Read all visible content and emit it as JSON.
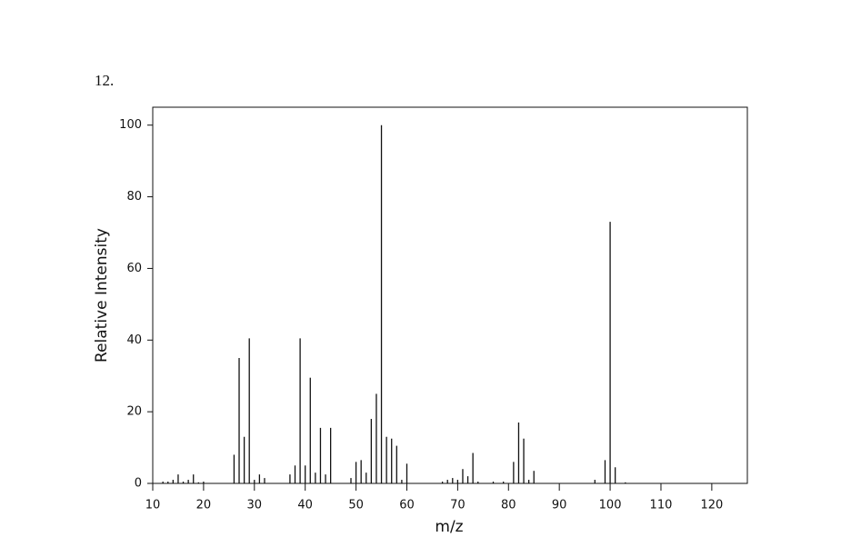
{
  "label": "12.",
  "chart_data": {
    "type": "stem",
    "x_label": "m/z",
    "y_label": "Relative Intensity",
    "color": "#111111",
    "x": [
      12,
      13,
      14,
      15,
      16,
      17,
      18,
      19,
      20,
      26,
      27,
      28,
      29,
      30,
      31,
      32,
      37,
      38,
      39,
      40,
      41,
      42,
      43,
      44,
      45,
      49,
      50,
      51,
      52,
      53,
      54,
      55,
      56,
      57,
      58,
      59,
      60,
      67,
      68,
      69,
      70,
      71,
      72,
      73,
      74,
      77,
      79,
      81,
      82,
      83,
      84,
      85,
      97,
      99,
      100,
      101,
      103
    ],
    "values": [
      0.5,
      0.5,
      1,
      2.5,
      0.5,
      1,
      2.5,
      0.3,
      0.5,
      8,
      35,
      13,
      40.5,
      1,
      2.5,
      1.5,
      2.5,
      5,
      40.5,
      5,
      29.5,
      3,
      15.5,
      2.5,
      15.5,
      1.5,
      6,
      6.5,
      3,
      18,
      25,
      100,
      13,
      12.5,
      10.5,
      1,
      5.5,
      0.5,
      1,
      1.5,
      1,
      4,
      2,
      8.5,
      0.5,
      0.5,
      0.5,
      6,
      17,
      12.5,
      1,
      3.5,
      1,
      6.5,
      73,
      4.5,
      0.3
    ],
    "xlim": [
      10,
      127
    ],
    "ylim": [
      0,
      105
    ],
    "xticks": [
      10,
      20,
      30,
      40,
      50,
      60,
      70,
      80,
      90,
      100,
      110,
      120
    ],
    "yticks": [
      0,
      20,
      40,
      60,
      80,
      100
    ]
  }
}
